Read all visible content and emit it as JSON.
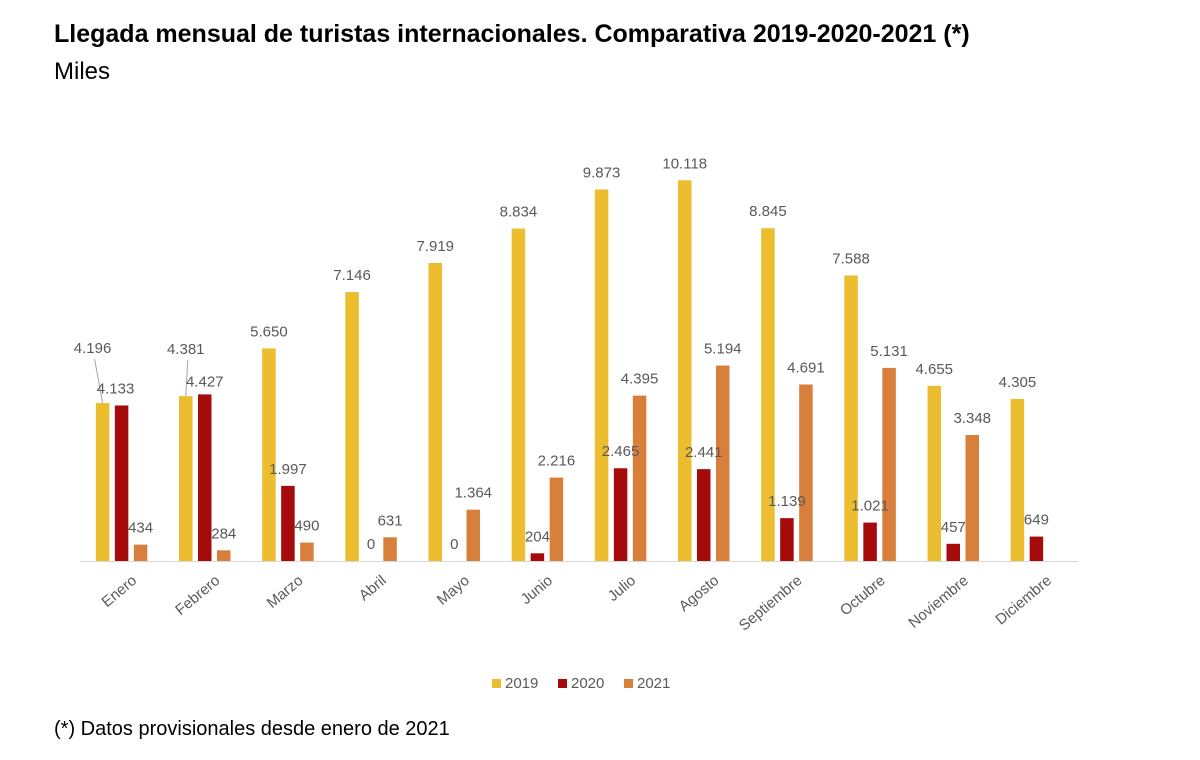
{
  "header": {
    "title": "Llegada mensual de turistas internacionales. Comparativa 2019-2020-2021 (*)",
    "subtitle": "Miles"
  },
  "footnote": "(*) Datos provisionales desde enero de 2021",
  "chart_data": {
    "type": "bar",
    "categories": [
      "Enero",
      "Febrero",
      "Marzo",
      "Abril",
      "Mayo",
      "Junio",
      "Julio",
      "Agosto",
      "Septiembre",
      "Octubre",
      "Noviembre",
      "Diciembre"
    ],
    "series": [
      {
        "name": "2019",
        "color": "#EBBD2F",
        "values": [
          4196,
          4381,
          5650,
          7146,
          7919,
          8834,
          9873,
          10118,
          8845,
          7588,
          4655,
          4305
        ],
        "labels": [
          "4.196",
          "4.381",
          "5.650",
          "7.146",
          "7.919",
          "8.834",
          "9.873",
          "10.118",
          "8.845",
          "7.588",
          "4.655",
          "4.305"
        ]
      },
      {
        "name": "2020",
        "color": "#A50B0B",
        "values": [
          4133,
          4427,
          1997,
          0,
          0,
          204,
          2465,
          2441,
          1139,
          1021,
          457,
          649
        ],
        "labels": [
          "4.133",
          "4.427",
          "1.997",
          "0",
          "0",
          "204",
          "2.465",
          "2.441",
          "1.139",
          "1.021",
          "457",
          "649"
        ]
      },
      {
        "name": "2021",
        "color": "#D97F3C",
        "values": [
          434,
          284,
          490,
          631,
          1364,
          2216,
          4395,
          5194,
          4691,
          5131,
          3348,
          null
        ],
        "labels": [
          "434",
          "284",
          "490",
          "631",
          "1.364",
          "2.216",
          "4.395",
          "5.194",
          "4.691",
          "5.131",
          "3.348",
          null
        ]
      }
    ],
    "ylim": [
      0,
      10500
    ],
    "grid": false,
    "legend_position": "bottom",
    "xlabel": "",
    "ylabel": ""
  }
}
